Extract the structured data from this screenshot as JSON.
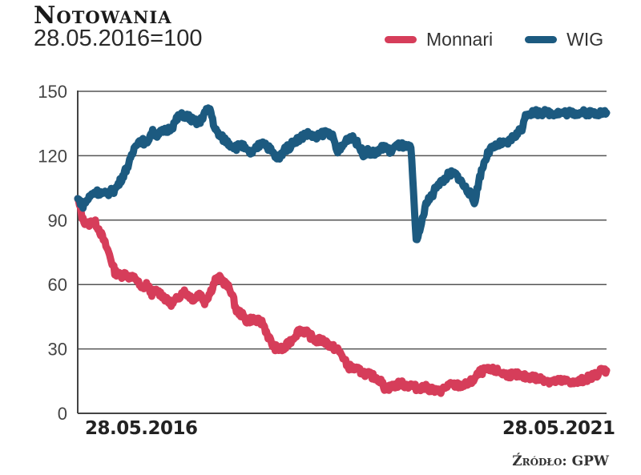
{
  "header": {
    "title": "Notowania",
    "subtitle": "28.05.2016=100"
  },
  "legend": [
    {
      "label": "Monnari",
      "color": "#d63d5a"
    },
    {
      "label": "WIG",
      "color": "#1c5a80"
    }
  ],
  "axis": {
    "x_start_label": "28.05.2016",
    "x_end_label": "28.05.2021",
    "y_ticks": [
      "150",
      "120",
      "90",
      "60",
      "30",
      "0"
    ]
  },
  "source": "Źródło: GPW",
  "chart_data": {
    "type": "line",
    "title": "Notowania",
    "subtitle": "28.05.2016=100",
    "xlabel": "",
    "ylabel": "",
    "x_range": [
      "28.05.2016",
      "28.05.2021"
    ],
    "ylim": [
      0,
      150
    ],
    "y_ticks": [
      0,
      30,
      60,
      90,
      120,
      150
    ],
    "grid": "horizontal",
    "legend_position": "top-right",
    "source": "Źródło: GPW",
    "x": [
      0.0,
      0.05,
      0.1,
      0.15,
      0.2,
      0.25,
      0.3,
      0.35,
      0.4,
      0.45,
      0.5,
      0.55,
      0.6,
      0.65,
      0.7,
      0.75,
      0.8,
      0.85,
      0.9,
      0.95,
      1.0,
      1.05,
      1.1,
      1.15,
      1.2,
      1.25,
      1.3,
      1.35,
      1.4,
      1.45,
      1.5,
      1.55,
      1.6,
      1.65,
      1.7,
      1.75,
      1.8,
      1.85,
      1.9,
      1.95,
      2.0,
      2.05,
      2.1,
      2.15,
      2.2,
      2.25,
      2.3,
      2.35,
      2.4,
      2.45,
      2.5,
      2.55,
      2.6,
      2.65,
      2.7,
      2.75,
      2.8,
      2.85,
      2.9,
      2.95,
      3.0,
      3.05,
      3.1,
      3.15,
      3.2,
      3.25,
      3.3,
      3.35,
      3.4,
      3.45,
      3.5,
      3.55,
      3.6,
      3.65,
      3.7,
      3.75,
      3.8,
      3.85,
      3.9,
      3.95,
      4.0,
      4.05,
      4.1,
      4.15,
      4.2,
      4.25,
      4.3,
      4.35,
      4.4,
      4.45,
      4.5,
      4.55,
      4.6,
      4.65,
      4.7,
      4.75,
      4.8,
      4.85,
      4.9,
      4.95,
      5.0
    ],
    "x_unit": "years since 28.05.2016",
    "series": [
      {
        "name": "Monnari",
        "color": "#d63d5a",
        "values": [
          100,
          90,
          88,
          90,
          86,
          80,
          74,
          66,
          64,
          65,
          63,
          63,
          58,
          60,
          56,
          57,
          55,
          52,
          51,
          54,
          57,
          55,
          53,
          56,
          52,
          56,
          62,
          63,
          60,
          57,
          48,
          46,
          43,
          44,
          43,
          42,
          36,
          31,
          30,
          30,
          33,
          36,
          39,
          38,
          36,
          34,
          34,
          33,
          31,
          30,
          27,
          22,
          21,
          20,
          19,
          18,
          17,
          16,
          12,
          12,
          13,
          14,
          13,
          13,
          12,
          12,
          12,
          11,
          10,
          11,
          13,
          13,
          13,
          13,
          14,
          16,
          19,
          20,
          20,
          20,
          19,
          18,
          18,
          18,
          17,
          17,
          17,
          16,
          16,
          15,
          15,
          15,
          15,
          15,
          14,
          15,
          16,
          17,
          18,
          20,
          20
        ]
      },
      {
        "name": "WIG",
        "color": "#1c5a80",
        "values": [
          100,
          97,
          100,
          103,
          103,
          102,
          103,
          104,
          108,
          113,
          118,
          126,
          127,
          126,
          131,
          130,
          131,
          132,
          134,
          138,
          139,
          138,
          136,
          135,
          140,
          142,
          132,
          129,
          127,
          125,
          124,
          125,
          122,
          121,
          124,
          127,
          124,
          121,
          118,
          123,
          124,
          127,
          128,
          130,
          130,
          128,
          130,
          131,
          130,
          122,
          124,
          128,
          129,
          125,
          121,
          122,
          121,
          122,
          125,
          122,
          124,
          125,
          124,
          124,
          80,
          88,
          99,
          101,
          107,
          108,
          111,
          112,
          110,
          106,
          103,
          98,
          110,
          118,
          123,
          124,
          126,
          125,
          128,
          130,
          133,
          140,
          140,
          140,
          140,
          140,
          140,
          140,
          140,
          140,
          140,
          140,
          140,
          140,
          140,
          140,
          140
        ]
      }
    ]
  }
}
